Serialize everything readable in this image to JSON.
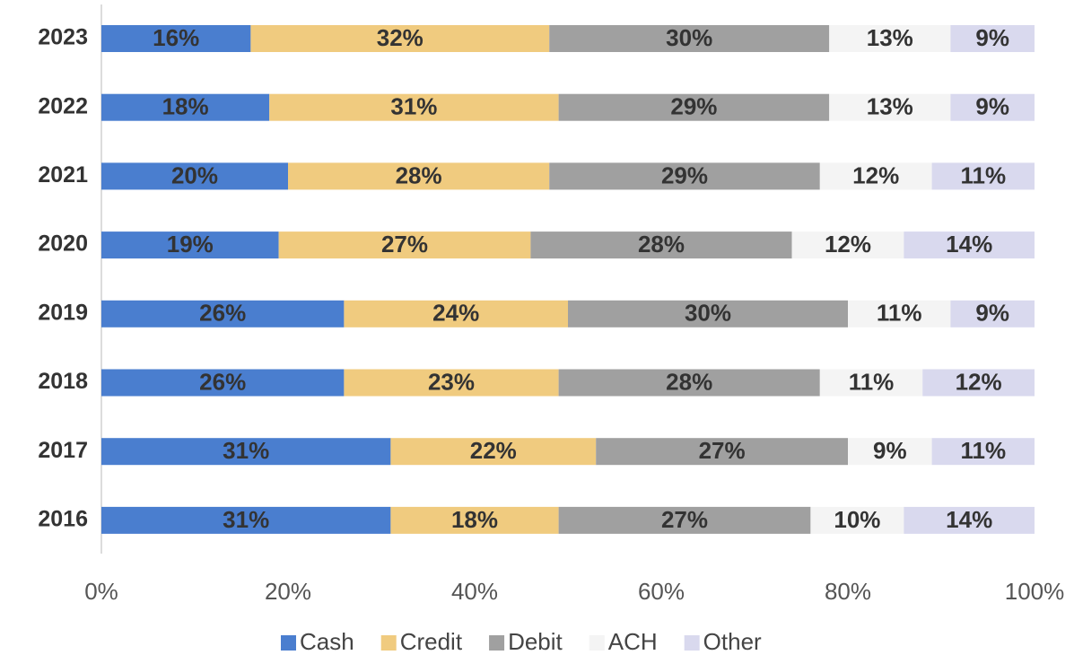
{
  "chart_data": {
    "type": "stacked_bar_horizontal",
    "categories": [
      "2023",
      "2022",
      "2021",
      "2020",
      "2019",
      "2018",
      "2017",
      "2016"
    ],
    "series": [
      {
        "name": "Cash",
        "color": "#4a7ecf",
        "values": [
          16,
          18,
          20,
          19,
          26,
          26,
          31,
          31
        ],
        "value_labels": [
          "16%",
          "18%",
          "20%",
          "19%",
          "26%",
          "26%",
          "31%",
          "31%"
        ]
      },
      {
        "name": "Credit",
        "color": "#f0cb7f",
        "values": [
          32,
          31,
          28,
          27,
          24,
          23,
          22,
          18
        ],
        "value_labels": [
          "32%",
          "31%",
          "28%",
          "27%",
          "24%",
          "23%",
          "22%",
          "18%"
        ]
      },
      {
        "name": "Debit",
        "color": "#a0a0a0",
        "values": [
          30,
          29,
          29,
          28,
          30,
          28,
          27,
          27
        ],
        "value_labels": [
          "30%",
          "29%",
          "29%",
          "28%",
          "30%",
          "28%",
          "27%",
          "27%"
        ]
      },
      {
        "name": "ACH",
        "color": "#f4f4f4",
        "values": [
          13,
          13,
          12,
          12,
          11,
          11,
          9,
          10
        ],
        "value_labels": [
          "13%",
          "13%",
          "12%",
          "12%",
          "11%",
          "11%",
          "9%",
          "10%"
        ]
      },
      {
        "name": "Other",
        "color": "#d9d9ee",
        "values": [
          9,
          9,
          11,
          14,
          9,
          12,
          11,
          14
        ],
        "value_labels": [
          "9%",
          "9%",
          "11%",
          "14%",
          "9%",
          "12%",
          "11%",
          "14%"
        ]
      }
    ],
    "xlim": [
      0,
      100
    ],
    "xticks": [
      {
        "value": 0,
        "label": "0%"
      },
      {
        "value": 20,
        "label": "20%"
      },
      {
        "value": 40,
        "label": "40%"
      },
      {
        "value": 60,
        "label": "60%"
      },
      {
        "value": 80,
        "label": "80%"
      },
      {
        "value": 100,
        "label": "100%"
      }
    ],
    "legend": "bottom"
  }
}
